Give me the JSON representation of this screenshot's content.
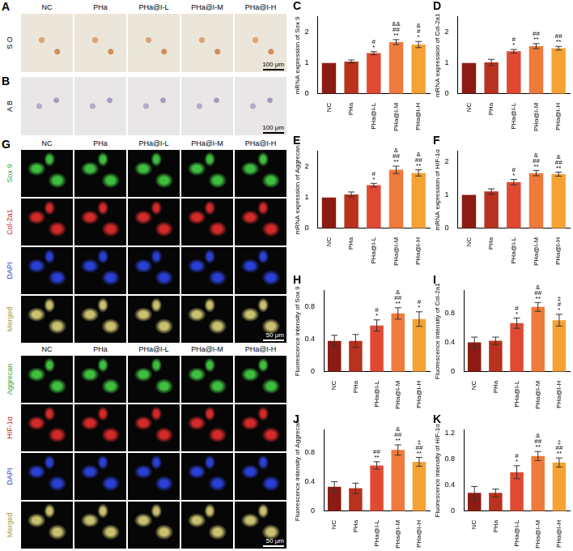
{
  "images": {
    "A": {
      "label": "A",
      "row_label": "S O",
      "columns": [
        "NC",
        "PHa",
        "PHa@I-L",
        "PHa@I-M",
        "PHa@I-H"
      ],
      "scale_bar": "100 μm"
    },
    "B": {
      "label": "B",
      "row_label": "A B",
      "columns": [
        "NC",
        "PHa",
        "PHa@I-L",
        "PHa@I-M",
        "PHa@I-H"
      ],
      "scale_bar": "100 μm"
    },
    "G": {
      "label": "G",
      "columns": [
        "NC",
        "PHa",
        "PHa@I-L",
        "PHa@I-M",
        "PHa@I-H"
      ],
      "blocks": [
        {
          "rows": [
            "Sox 9",
            "Col-2a1",
            "DAPI",
            "Merged"
          ],
          "scale_bar": "50 μm"
        },
        {
          "rows": [
            "Aggrecan",
            "HIF-1α",
            "DAPI",
            "Merged"
          ],
          "scale_bar": "50 μm"
        }
      ]
    }
  },
  "chart_data": [
    {
      "type": "bar",
      "title": "C",
      "y_label": "mRNA expression of Sox 9",
      "categories": [
        "NC",
        "PHa",
        "PHa@I-L",
        "PHa@I-M",
        "PHa@I-H"
      ],
      "values": [
        1,
        1.05,
        1.32,
        1.68,
        1.6
      ],
      "errors": [
        0,
        0.05,
        0.05,
        0.08,
        0.1
      ],
      "annotations": [
        null,
        null,
        [
          "#",
          "*"
        ],
        [
          "&&",
          "##",
          "**"
        ],
        [
          "&",
          "#",
          "*"
        ]
      ],
      "colors": [
        "#8c1c13",
        "#b8321f",
        "#e04a33",
        "#ee7a3b",
        "#f5a235"
      ],
      "ylim": [
        0,
        2.5
      ],
      "yticks": [
        0,
        1,
        2
      ],
      "grid": false
    },
    {
      "type": "bar",
      "title": "D",
      "y_label": "mRNA expression of Col-2a1",
      "categories": [
        "NC",
        "PHa",
        "PHa@I-L",
        "PHa@I-M",
        "PHa@I-H"
      ],
      "values": [
        1,
        1.02,
        1.38,
        1.55,
        1.48
      ],
      "errors": [
        0,
        0.1,
        0.06,
        0.08,
        0.06
      ],
      "annotations": [
        null,
        null,
        [
          "#",
          "*"
        ],
        [
          "##",
          "**"
        ],
        [
          "##",
          "**"
        ]
      ],
      "colors": [
        "#8c1c13",
        "#b8321f",
        "#e04a33",
        "#ee7a3b",
        "#f5a235"
      ],
      "ylim": [
        0,
        2.5
      ],
      "yticks": [
        0,
        1,
        2
      ],
      "grid": false
    },
    {
      "type": "bar",
      "title": "E",
      "y_label": "mRNA expression of Aggrecan",
      "categories": [
        "NC",
        "PHa",
        "PHa@I-L",
        "PHa@I-M",
        "PHa@I-H"
      ],
      "values": [
        1,
        1.1,
        1.4,
        1.9,
        1.8
      ],
      "errors": [
        0,
        0.08,
        0.06,
        0.12,
        0.1
      ],
      "annotations": [
        null,
        null,
        [
          "#",
          "*"
        ],
        [
          "&",
          "##",
          "**"
        ],
        [
          "&",
          "##",
          "**"
        ]
      ],
      "colors": [
        "#8c1c13",
        "#b8321f",
        "#e04a33",
        "#ee7a3b",
        "#f5a235"
      ],
      "ylim": [
        0,
        2.5
      ],
      "yticks": [
        0,
        1,
        2
      ],
      "grid": false
    },
    {
      "type": "bar",
      "title": "F",
      "y_label": "mRNA expression of HIF-1α",
      "categories": [
        "NC",
        "PHa",
        "PHa@I-L",
        "PHa@I-M",
        "PHa@I-H"
      ],
      "values": [
        1,
        1.1,
        1.38,
        1.65,
        1.62
      ],
      "errors": [
        0,
        0.08,
        0.08,
        0.08,
        0.06
      ],
      "annotations": [
        null,
        null,
        [
          "#",
          "*"
        ],
        [
          "&",
          "##",
          "**"
        ],
        [
          "&",
          "##",
          "**"
        ]
      ],
      "colors": [
        "#8c1c13",
        "#b8321f",
        "#e04a33",
        "#ee7a3b",
        "#f5a235"
      ],
      "ylim": [
        0,
        2.3
      ],
      "yticks": [
        0,
        1,
        2
      ],
      "grid": false
    },
    {
      "type": "bar",
      "title": "H",
      "y_label": "Fluorescence intensity of Sox 9",
      "categories": [
        "NC",
        "PHa",
        "PHa@I-L",
        "PHa@I-M",
        "PHa@I-H"
      ],
      "values": [
        0.38,
        0.38,
        0.57,
        0.72,
        0.65
      ],
      "errors": [
        0.07,
        0.08,
        0.07,
        0.07,
        0.09
      ],
      "annotations": [
        null,
        null,
        [
          "#",
          "*"
        ],
        [
          "&",
          "##",
          "**"
        ],
        [
          "#",
          "*"
        ]
      ],
      "colors": [
        "#8c1c13",
        "#b8321f",
        "#e04a33",
        "#ee7a3b",
        "#f5a235"
      ],
      "ylim": [
        0,
        1
      ],
      "yticks": [
        0,
        0.4,
        0.8
      ],
      "grid": false
    },
    {
      "type": "bar",
      "title": "I",
      "y_label": "Fluorescence intensity of Col-2a1",
      "categories": [
        "NC",
        "PHa",
        "PHa@I-L",
        "PHa@I-M",
        "PHa@I-H"
      ],
      "values": [
        0.4,
        0.42,
        0.66,
        0.88,
        0.7
      ],
      "errors": [
        0.07,
        0.05,
        0.07,
        0.06,
        0.08
      ],
      "annotations": [
        null,
        null,
        [
          "#",
          "*"
        ],
        [
          "&",
          "##",
          "**"
        ],
        [
          "‡",
          "#",
          "*"
        ]
      ],
      "colors": [
        "#8c1c13",
        "#b8321f",
        "#e04a33",
        "#ee7a3b",
        "#f5a235"
      ],
      "ylim": [
        0,
        1.1
      ],
      "yticks": [
        0,
        0.4,
        0.8
      ],
      "grid": false
    },
    {
      "type": "bar",
      "title": "J",
      "y_label": "Fluorescence intensity of Aggrecan",
      "categories": [
        "NC",
        "PHa",
        "PHa@I-L",
        "PHa@I-M",
        "PHa@I-H"
      ],
      "values": [
        0.33,
        0.31,
        0.62,
        0.83,
        0.67
      ],
      "errors": [
        0.07,
        0.07,
        0.05,
        0.07,
        0.06
      ],
      "annotations": [
        null,
        null,
        [
          "##",
          "**"
        ],
        [
          "&",
          "##",
          "**"
        ],
        [
          "‡",
          "##",
          "**"
        ]
      ],
      "colors": [
        "#8c1c13",
        "#b8321f",
        "#e04a33",
        "#ee7a3b",
        "#f5a235"
      ],
      "ylim": [
        0,
        1.1
      ],
      "yticks": [
        0,
        0.4,
        0.8
      ],
      "grid": false
    },
    {
      "type": "bar",
      "title": "K",
      "y_label": "Fluorescence intensity of HIF-1α",
      "categories": [
        "NC",
        "PHa",
        "PHa@I-L",
        "PHa@I-M",
        "PHa@I-H"
      ],
      "values": [
        0.28,
        0.28,
        0.6,
        0.85,
        0.75
      ],
      "errors": [
        0.1,
        0.06,
        0.1,
        0.07,
        0.07
      ],
      "annotations": [
        null,
        null,
        [
          "#",
          "*"
        ],
        [
          "&",
          "##",
          "**"
        ],
        [
          "‡",
          "##",
          "**"
        ]
      ],
      "colors": [
        "#8c1c13",
        "#b8321f",
        "#e04a33",
        "#ee7a3b",
        "#f5a235"
      ],
      "ylim": [
        0,
        1.25
      ],
      "yticks": [
        0,
        0.4,
        0.8,
        1.2
      ],
      "grid": false
    }
  ]
}
